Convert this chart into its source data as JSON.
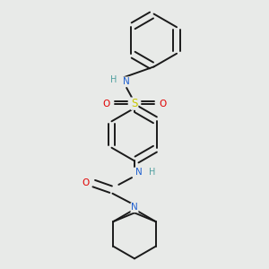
{
  "background_color": "#e8eae8",
  "bond_color": "#1a1a1a",
  "atom_colors": {
    "N": "#2060d0",
    "S": "#c8c800",
    "O": "#e00000",
    "H_color": "#50a0a0"
  },
  "figsize": [
    3.0,
    3.0
  ],
  "dpi": 100
}
